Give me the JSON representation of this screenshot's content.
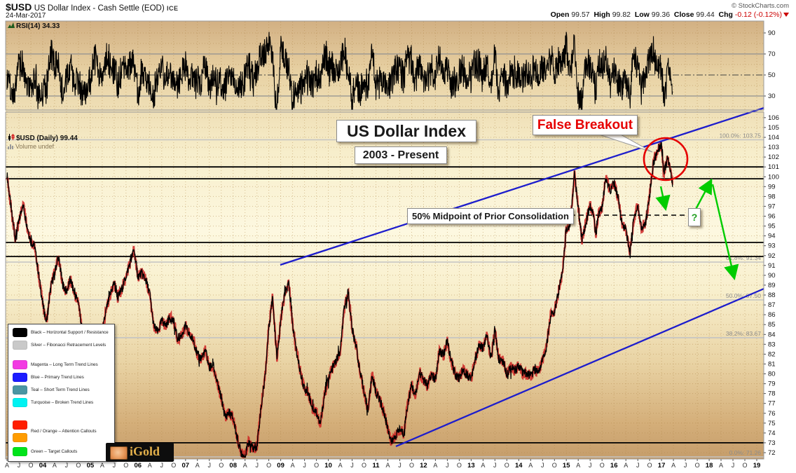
{
  "header": {
    "symbol": "$USD",
    "name": "US Dollar Index - Cash Settle (EOD)",
    "exchange": "ICE",
    "date": "24-Mar-2017",
    "copyright": "© StockCharts.com",
    "quote": {
      "open_label": "Open",
      "open": "99.57",
      "high_label": "High",
      "high": "99.82",
      "low_label": "Low",
      "low": "99.36",
      "close_label": "Close",
      "close": "99.44",
      "chg_label": "Chg",
      "chg": "-0.12 (-0.12%)"
    }
  },
  "panels": {
    "rsi_label": "RSI(14) 34.33",
    "price_label": "$USD (Daily) 99.44",
    "volume_label": "Volume undef"
  },
  "annotations": {
    "title": "US Dollar Index",
    "subtitle": "2003 - Present",
    "false_breakout": "False Breakout",
    "midpoint": "50% Midpoint of Prior Consolidation",
    "question_mark": "?"
  },
  "legend": {
    "items": [
      {
        "colors": [
          "#000000"
        ],
        "label": "Black – Horizontal Support / Resistance"
      },
      {
        "colors": [
          "#c9c9c9"
        ],
        "label": "Silver – Fibonacci Retracement Levels"
      },
      {
        "colors": [
          "#f23ae2"
        ],
        "label": "Magenta – Long Term Trend Lines"
      },
      {
        "colors": [
          "#1c1cff"
        ],
        "label": "Blue – Primary Trend Lines"
      },
      {
        "colors": [
          "#4b96a3"
        ],
        "label": "Teal – Short Term Trend Lines"
      },
      {
        "colors": [
          "#00f2f2"
        ],
        "label": "Turquoise – Broken Trend Lines"
      },
      {
        "colors": [
          "#ff1e00",
          "#ff9c00"
        ],
        "label": "Red / Orange – Attention Callouts"
      },
      {
        "colors": [
          "#00e31b"
        ],
        "label": "Green – Target Callouts"
      }
    ]
  },
  "logo": {
    "text": "iGold"
  },
  "chart_data": {
    "type": "line",
    "title": "US Dollar Index",
    "subtitle": "2003 - Present",
    "x_range": [
      2003.25,
      2019.15
    ],
    "price_axis": {
      "tick_min": 72,
      "tick_max": 106,
      "step": 1
    },
    "rsi_ticks": [
      90,
      70,
      50,
      30
    ],
    "rsi_last": 34.33,
    "x_labels": [
      "A",
      "J",
      "O",
      "04",
      "A",
      "J",
      "O",
      "05",
      "A",
      "J",
      "O",
      "06",
      "A",
      "J",
      "O",
      "07",
      "A",
      "J",
      "O",
      "08",
      "A",
      "J",
      "O",
      "09",
      "A",
      "J",
      "O",
      "10",
      "A",
      "J",
      "O",
      "11",
      "A",
      "J",
      "O",
      "12",
      "A",
      "J",
      "O",
      "13",
      "A",
      "J",
      "O",
      "14",
      "A",
      "J",
      "O",
      "15",
      "A",
      "J",
      "O",
      "16",
      "A",
      "J",
      "O",
      "17",
      "A",
      "J",
      "O",
      "18",
      "A",
      "J",
      "O",
      "19"
    ],
    "support_levels": [
      101.0,
      99.8,
      93.33,
      91.91,
      73.0
    ],
    "fib_levels": [
      {
        "label": "100.0%: 103.75",
        "price": 103.75
      },
      {
        "label": "61.8%: 91.34",
        "price": 91.34
      },
      {
        "label": "50.0%: 87.50",
        "price": 87.5
      },
      {
        "label": "38.2%: 83.67",
        "price": 83.67
      },
      {
        "label": "0.0%: 71.26",
        "price": 71.26
      }
    ],
    "trend_lines": [
      {
        "t1": 2008.99,
        "p1": 91.06,
        "t2": 2019.15,
        "p2": 106.99
      },
      {
        "t1": 2011.42,
        "p1": 72.64,
        "t2": 2019.15,
        "p2": 88.64
      }
    ],
    "midpoint_line_price": 96.1,
    "colors": {
      "series_black": "#000000",
      "series_red": "#cc2222",
      "trend_blue": "#1d1dcc",
      "fib_silver": "#c3c3c3",
      "support_black": "#000000",
      "callout_red": "#e60000",
      "target_green": "#00cc00",
      "grid_brown": "#b08648"
    },
    "series_monthly": [
      [
        2003.25,
        100.3
      ],
      [
        2003.33,
        97.0
      ],
      [
        2003.42,
        93.8
      ],
      [
        2003.5,
        95.4
      ],
      [
        2003.58,
        97.3
      ],
      [
        2003.67,
        95.1
      ],
      [
        2003.75,
        93.4
      ],
      [
        2003.83,
        93.0
      ],
      [
        2003.92,
        89.9
      ],
      [
        2004.0,
        87.1
      ],
      [
        2004.08,
        85.3
      ],
      [
        2004.17,
        88.8
      ],
      [
        2004.25,
        90.3
      ],
      [
        2004.33,
        91.9
      ],
      [
        2004.42,
        89.1
      ],
      [
        2004.5,
        88.3
      ],
      [
        2004.58,
        89.6
      ],
      [
        2004.67,
        88.1
      ],
      [
        2004.75,
        87.3
      ],
      [
        2004.83,
        84.3
      ],
      [
        2004.92,
        81.7
      ],
      [
        2005.0,
        80.9
      ],
      [
        2005.08,
        83.7
      ],
      [
        2005.17,
        84.6
      ],
      [
        2005.25,
        84.1
      ],
      [
        2005.33,
        86.4
      ],
      [
        2005.42,
        88.1
      ],
      [
        2005.5,
        89.3
      ],
      [
        2005.58,
        87.7
      ],
      [
        2005.67,
        88.7
      ],
      [
        2005.75,
        89.9
      ],
      [
        2005.83,
        91.2
      ],
      [
        2005.92,
        92.6
      ],
      [
        2006.0,
        89.9
      ],
      [
        2006.08,
        90.2
      ],
      [
        2006.17,
        89.5
      ],
      [
        2006.25,
        88.1
      ],
      [
        2006.33,
        84.9
      ],
      [
        2006.42,
        84.2
      ],
      [
        2006.5,
        85.4
      ],
      [
        2006.58,
        84.9
      ],
      [
        2006.67,
        85.7
      ],
      [
        2006.75,
        85.3
      ],
      [
        2006.83,
        83.6
      ],
      [
        2006.92,
        83.9
      ],
      [
        2007.0,
        84.9
      ],
      [
        2007.08,
        83.9
      ],
      [
        2007.17,
        83.4
      ],
      [
        2007.25,
        81.9
      ],
      [
        2007.33,
        81.6
      ],
      [
        2007.42,
        82.4
      ],
      [
        2007.5,
        80.6
      ],
      [
        2007.58,
        80.9
      ],
      [
        2007.67,
        79.0
      ],
      [
        2007.75,
        77.6
      ],
      [
        2007.83,
        75.6
      ],
      [
        2007.92,
        76.1
      ],
      [
        2008.0,
        75.5
      ],
      [
        2008.08,
        73.6
      ],
      [
        2008.17,
        71.9
      ],
      [
        2008.25,
        71.6
      ],
      [
        2008.33,
        73.2
      ],
      [
        2008.42,
        72.4
      ],
      [
        2008.5,
        72.7
      ],
      [
        2008.58,
        76.3
      ],
      [
        2008.67,
        79.7
      ],
      [
        2008.75,
        84.7
      ],
      [
        2008.83,
        87.9
      ],
      [
        2008.92,
        81.6
      ],
      [
        2009.0,
        85.5
      ],
      [
        2009.08,
        88.0
      ],
      [
        2009.17,
        89.2
      ],
      [
        2009.25,
        84.9
      ],
      [
        2009.33,
        82.3
      ],
      [
        2009.42,
        80.0
      ],
      [
        2009.5,
        78.4
      ],
      [
        2009.58,
        78.1
      ],
      [
        2009.67,
        76.5
      ],
      [
        2009.75,
        76.1
      ],
      [
        2009.83,
        74.8
      ],
      [
        2009.92,
        77.9
      ],
      [
        2010.0,
        79.5
      ],
      [
        2010.08,
        80.5
      ],
      [
        2010.17,
        81.4
      ],
      [
        2010.25,
        82.2
      ],
      [
        2010.33,
        86.5
      ],
      [
        2010.42,
        88.4
      ],
      [
        2010.5,
        84.5
      ],
      [
        2010.58,
        83.0
      ],
      [
        2010.67,
        80.0
      ],
      [
        2010.75,
        78.3
      ],
      [
        2010.83,
        76.3
      ],
      [
        2010.92,
        79.9
      ],
      [
        2011.0,
        78.1
      ],
      [
        2011.08,
        77.4
      ],
      [
        2011.17,
        76.0
      ],
      [
        2011.25,
        74.5
      ],
      [
        2011.33,
        73.0
      ],
      [
        2011.42,
        73.8
      ],
      [
        2011.5,
        74.4
      ],
      [
        2011.58,
        73.9
      ],
      [
        2011.67,
        77.0
      ],
      [
        2011.75,
        78.9
      ],
      [
        2011.83,
        77.8
      ],
      [
        2011.92,
        80.2
      ],
      [
        2012.0,
        79.4
      ],
      [
        2012.08,
        78.8
      ],
      [
        2012.17,
        79.9
      ],
      [
        2012.25,
        79.3
      ],
      [
        2012.33,
        82.4
      ],
      [
        2012.42,
        81.9
      ],
      [
        2012.5,
        83.4
      ],
      [
        2012.58,
        81.3
      ],
      [
        2012.67,
        79.9
      ],
      [
        2012.75,
        79.6
      ],
      [
        2012.83,
        80.4
      ],
      [
        2012.92,
        79.9
      ],
      [
        2013.0,
        79.6
      ],
      [
        2013.08,
        81.4
      ],
      [
        2013.17,
        82.9
      ],
      [
        2013.25,
        82.6
      ],
      [
        2013.33,
        83.9
      ],
      [
        2013.42,
        81.6
      ],
      [
        2013.5,
        84.4
      ],
      [
        2013.58,
        81.5
      ],
      [
        2013.67,
        81.3
      ],
      [
        2013.75,
        80.1
      ],
      [
        2013.83,
        80.7
      ],
      [
        2013.92,
        80.3
      ],
      [
        2014.0,
        80.9
      ],
      [
        2014.08,
        80.1
      ],
      [
        2014.17,
        80.0
      ],
      [
        2014.25,
        79.8
      ],
      [
        2014.33,
        80.4
      ],
      [
        2014.42,
        80.3
      ],
      [
        2014.5,
        81.4
      ],
      [
        2014.58,
        82.7
      ],
      [
        2014.67,
        85.9
      ],
      [
        2014.75,
        86.4
      ],
      [
        2014.83,
        88.2
      ],
      [
        2014.92,
        90.3
      ],
      [
        2015.0,
        94.7
      ],
      [
        2015.08,
        95.2
      ],
      [
        2015.17,
        100.2
      ],
      [
        2015.25,
        96.9
      ],
      [
        2015.33,
        93.6
      ],
      [
        2015.42,
        95.6
      ],
      [
        2015.5,
        97.1
      ],
      [
        2015.58,
        95.9
      ],
      [
        2015.62,
        93.9
      ],
      [
        2015.67,
        96.2
      ],
      [
        2015.75,
        96.8
      ],
      [
        2015.83,
        99.9
      ],
      [
        2015.92,
        98.6
      ],
      [
        2016.0,
        99.4
      ],
      [
        2016.08,
        98.0
      ],
      [
        2016.17,
        95.2
      ],
      [
        2016.25,
        94.7
      ],
      [
        2016.33,
        92.3
      ],
      [
        2016.42,
        95.8
      ],
      [
        2016.5,
        97.1
      ],
      [
        2016.58,
        94.8
      ],
      [
        2016.67,
        95.4
      ],
      [
        2016.75,
        98.2
      ],
      [
        2016.83,
        101.4
      ],
      [
        2016.92,
        102.8
      ],
      [
        2017.0,
        103.3
      ],
      [
        2017.04,
        100.4
      ],
      [
        2017.08,
        100.9
      ],
      [
        2017.13,
        101.9
      ],
      [
        2017.17,
        101.0
      ],
      [
        2017.21,
        99.9
      ],
      [
        2017.23,
        99.44
      ]
    ]
  }
}
